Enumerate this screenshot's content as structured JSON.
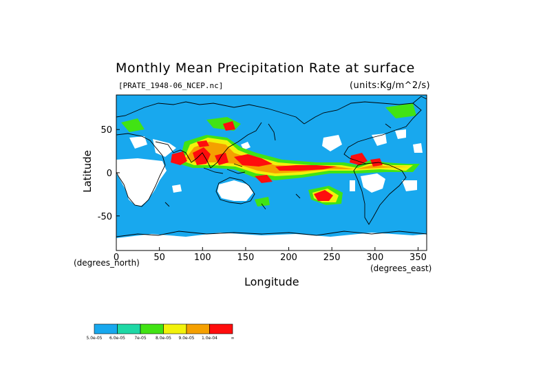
{
  "chart_data": {
    "type": "heatmap",
    "title": "Monthly Mean Precipitation Rate at surface",
    "subtitle_left": "[PRATE_1948-06_NCEP.nc]",
    "subtitle_right": "(units:Kg/m^2/s)",
    "xlabel": "Longitude",
    "ylabel": "Latitude",
    "x_unit_label": "(degrees_east)",
    "y_unit_label": "(degrees_north)",
    "xlim": [
      0,
      360
    ],
    "ylim": [
      -90,
      90
    ],
    "x_ticks": [
      "0",
      "50",
      "100",
      "150",
      "200",
      "250",
      "300",
      "350"
    ],
    "y_ticks": [
      "50",
      "0",
      "-50"
    ],
    "colorbar": {
      "colors": [
        "#18a8ee",
        "#1ed8a5",
        "#41e314",
        "#f2f20b",
        "#f5a000",
        "#ff0d0d"
      ],
      "labels": [
        "5.0e-05",
        "6.0e-05",
        "7e-05",
        "8.0e-05",
        "9.0e-05",
        "1.0e-04",
        "∞"
      ]
    },
    "background_color": "#18a8ee",
    "missing_color": "#ffffff",
    "coastline_color": "#000000"
  }
}
